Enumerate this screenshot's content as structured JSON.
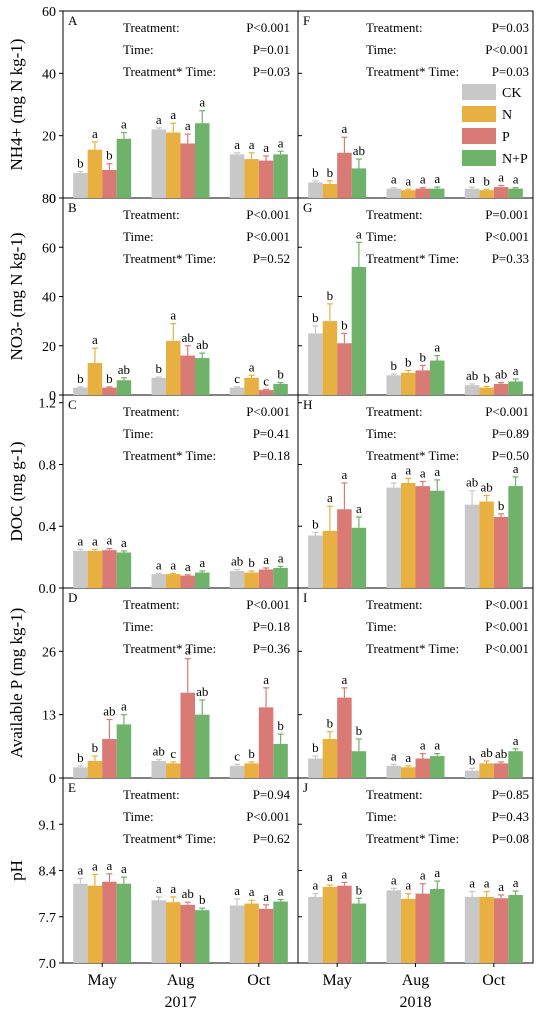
{
  "figure": {
    "years": [
      "2017",
      "2018"
    ],
    "legend": [
      {
        "label": "CK",
        "color": "#c8c8c8"
      },
      {
        "label": "N",
        "color": "#e8b040"
      },
      {
        "label": "P",
        "color": "#d97b74"
      },
      {
        "label": "N+P",
        "color": "#6fb26a"
      }
    ]
  },
  "chart_data": [
    {
      "type": "bar",
      "panel": "A",
      "row": 0,
      "col": 0,
      "ylabel": "NH4+ (mg N kg-1)",
      "ylim": [
        0,
        60
      ],
      "yticks": [
        0,
        20,
        40,
        60
      ],
      "categories": [
        "May",
        "Aug",
        "Oct"
      ],
      "series": [
        {
          "name": "CK",
          "values": [
            8,
            22,
            14
          ],
          "errors": [
            0.5,
            0.5,
            0.5
          ]
        },
        {
          "name": "N",
          "values": [
            15.5,
            21,
            12.5
          ],
          "errors": [
            2.5,
            3,
            2
          ]
        },
        {
          "name": "P",
          "values": [
            9,
            17.5,
            12
          ],
          "errors": [
            2,
            3,
            1.5
          ]
        },
        {
          "name": "N+P",
          "values": [
            19,
            24,
            14
          ],
          "errors": [
            2,
            4,
            1
          ]
        }
      ],
      "letters": [
        [
          "b",
          "a",
          "b",
          "a"
        ],
        [
          "a",
          "a",
          "a",
          "a"
        ],
        [
          "a",
          "a",
          "a",
          "a"
        ]
      ],
      "stats": [
        {
          "label": "Treatment:",
          "value": "P<0.001"
        },
        {
          "label": "Time:",
          "value": "P=0.01"
        },
        {
          "label": "Treatment* Time:",
          "value": "P=0.03"
        }
      ]
    },
    {
      "type": "bar",
      "panel": "F",
      "row": 0,
      "col": 1,
      "ylim": [
        0,
        60
      ],
      "categories": [
        "May",
        "Aug",
        "Oct"
      ],
      "series": [
        {
          "name": "CK",
          "values": [
            5,
            3,
            3
          ],
          "errors": [
            0.5,
            0.3,
            0.5
          ]
        },
        {
          "name": "N",
          "values": [
            4.5,
            2.5,
            2.5
          ],
          "errors": [
            1,
            0.3,
            0.3
          ]
        },
        {
          "name": "P",
          "values": [
            14.5,
            3,
            3.5
          ],
          "errors": [
            5,
            0.3,
            0.5
          ]
        },
        {
          "name": "N+P",
          "values": [
            9.5,
            3,
            3
          ],
          "errors": [
            3,
            0.5,
            0.3
          ]
        }
      ],
      "letters": [
        [
          "b",
          "b",
          "a",
          "ab"
        ],
        [
          "a",
          "a",
          "a",
          "a"
        ],
        [
          "a",
          "b",
          "a",
          "a"
        ]
      ],
      "stats": [
        {
          "label": "Treatment:",
          "value": "P=0.03"
        },
        {
          "label": "Time:",
          "value": "P<0.001"
        },
        {
          "label": "Treatment* Time:",
          "value": "P=0.03"
        }
      ]
    },
    {
      "type": "bar",
      "panel": "B",
      "row": 1,
      "col": 0,
      "ylabel": "NO3- (mg N kg-1)",
      "ylim": [
        0,
        80
      ],
      "yticks": [
        0,
        20,
        40,
        60,
        80
      ],
      "categories": [
        "May",
        "Aug",
        "Oct"
      ],
      "series": [
        {
          "name": "CK",
          "values": [
            3,
            7,
            3
          ],
          "errors": [
            0.3,
            0.3,
            0.3
          ]
        },
        {
          "name": "N",
          "values": [
            13,
            22,
            7
          ],
          "errors": [
            6,
            7,
            1
          ]
        },
        {
          "name": "P",
          "values": [
            3,
            16,
            2
          ],
          "errors": [
            0.3,
            4,
            0.3
          ]
        },
        {
          "name": "N+P",
          "values": [
            6,
            15,
            4.5
          ],
          "errors": [
            1,
            2,
            0.5
          ]
        }
      ],
      "letters": [
        [
          "b",
          "a",
          "b",
          "ab"
        ],
        [
          "b",
          "a",
          "ab",
          "ab"
        ],
        [
          "c",
          "a",
          "c",
          "b"
        ]
      ],
      "stats": [
        {
          "label": "Treatment:",
          "value": "P<0.001"
        },
        {
          "label": "Time:",
          "value": "P<0.001"
        },
        {
          "label": "Treatment* Time:",
          "value": "P=0.52"
        }
      ]
    },
    {
      "type": "bar",
      "panel": "G",
      "row": 1,
      "col": 1,
      "ylim": [
        0,
        80
      ],
      "categories": [
        "May",
        "Aug",
        "Oct"
      ],
      "series": [
        {
          "name": "CK",
          "values": [
            25,
            8,
            4
          ],
          "errors": [
            3,
            0.5,
            0.5
          ]
        },
        {
          "name": "N",
          "values": [
            30,
            9,
            3
          ],
          "errors": [
            7,
            1,
            0.5
          ]
        },
        {
          "name": "P",
          "values": [
            21,
            10,
            4.5
          ],
          "errors": [
            4,
            2,
            0.5
          ]
        },
        {
          "name": "N+P",
          "values": [
            52,
            14,
            5.5
          ],
          "errors": [
            10,
            2,
            1
          ]
        }
      ],
      "letters": [
        [
          "b",
          "b",
          "b",
          "a"
        ],
        [
          "b",
          "b",
          "b",
          "a"
        ],
        [
          "ab",
          "b",
          "ab",
          "a"
        ]
      ],
      "stats": [
        {
          "label": "Treatment:",
          "value": "P=0.001"
        },
        {
          "label": "Time:",
          "value": "P<0.001"
        },
        {
          "label": "Treatment* Time:",
          "value": "P=0.33"
        }
      ]
    },
    {
      "type": "bar",
      "panel": "C",
      "row": 2,
      "col": 0,
      "ylabel": "DOC (mg g-1)",
      "ylim": [
        0,
        1.25
      ],
      "yticks": [
        0.0,
        0.4,
        0.8,
        1.2
      ],
      "categories": [
        "May",
        "Aug",
        "Oct"
      ],
      "series": [
        {
          "name": "CK",
          "values": [
            0.24,
            0.09,
            0.11
          ],
          "errors": [
            0.01,
            0.005,
            0.01
          ]
        },
        {
          "name": "N",
          "values": [
            0.24,
            0.09,
            0.1
          ],
          "errors": [
            0.01,
            0.005,
            0.01
          ]
        },
        {
          "name": "P",
          "values": [
            0.245,
            0.08,
            0.12
          ],
          "errors": [
            0.01,
            0.005,
            0.01
          ]
        },
        {
          "name": "N+P",
          "values": [
            0.23,
            0.1,
            0.13
          ],
          "errors": [
            0.01,
            0.01,
            0.01
          ]
        }
      ],
      "letters": [
        [
          "a",
          "a",
          "a",
          "a"
        ],
        [
          "a",
          "a",
          "a",
          "a"
        ],
        [
          "ab",
          "b",
          "a",
          "a"
        ]
      ],
      "stats": [
        {
          "label": "Treatment:",
          "value": "P<0.001"
        },
        {
          "label": "Time:",
          "value": "P=0.41"
        },
        {
          "label": "Treatment* Time:",
          "value": "P=0.18"
        }
      ]
    },
    {
      "type": "bar",
      "panel": "H",
      "row": 2,
      "col": 1,
      "ylim": [
        0,
        1.25
      ],
      "categories": [
        "May",
        "Aug",
        "Oct"
      ],
      "series": [
        {
          "name": "CK",
          "values": [
            0.34,
            0.65,
            0.54
          ],
          "errors": [
            0.02,
            0.03,
            0.09
          ]
        },
        {
          "name": "N",
          "values": [
            0.37,
            0.68,
            0.56
          ],
          "errors": [
            0.16,
            0.03,
            0.04
          ]
        },
        {
          "name": "P",
          "values": [
            0.51,
            0.66,
            0.46
          ],
          "errors": [
            0.17,
            0.03,
            0.02
          ]
        },
        {
          "name": "N+P",
          "values": [
            0.39,
            0.63,
            0.66
          ],
          "errors": [
            0.07,
            0.07,
            0.06
          ]
        }
      ],
      "letters": [
        [
          "b",
          "a",
          "a",
          "a"
        ],
        [
          "a",
          "a",
          "a",
          "a"
        ],
        [
          "ab",
          "ab",
          "b",
          "a"
        ]
      ],
      "stats": [
        {
          "label": "Treatment:",
          "value": "P<0.001"
        },
        {
          "label": "Time:",
          "value": "P=0.89"
        },
        {
          "label": "Treatment* Time:",
          "value": "P=0.50"
        }
      ]
    },
    {
      "type": "bar",
      "panel": "D",
      "row": 3,
      "col": 0,
      "ylabel": "Available P (mg kg-1)",
      "ylim": [
        0,
        39
      ],
      "yticks": [
        0,
        13,
        26
      ],
      "categories": [
        "May",
        "Aug",
        "Oct"
      ],
      "series": [
        {
          "name": "CK",
          "values": [
            2.2,
            3.5,
            2.5
          ],
          "errors": [
            0.3,
            0.3,
            0.3
          ]
        },
        {
          "name": "N",
          "values": [
            3.5,
            3,
            3
          ],
          "errors": [
            1,
            0.3,
            0.3
          ]
        },
        {
          "name": "P",
          "values": [
            8,
            17.5,
            14.5
          ],
          "errors": [
            4,
            7,
            4
          ]
        },
        {
          "name": "N+P",
          "values": [
            11,
            13,
            7
          ],
          "errors": [
            2,
            3,
            2
          ]
        }
      ],
      "letters": [
        [
          "b",
          "b",
          "ab",
          "a"
        ],
        [
          "ab",
          "c",
          "a",
          "ab"
        ],
        [
          "c",
          "b",
          "a",
          "b"
        ]
      ],
      "stats": [
        {
          "label": "Treatment:",
          "value": "P<0.001"
        },
        {
          "label": "Time:",
          "value": "P=0.18"
        },
        {
          "label": "Treatment* Time:",
          "value": "P=0.36"
        }
      ]
    },
    {
      "type": "bar",
      "panel": "I",
      "row": 3,
      "col": 1,
      "ylim": [
        0,
        39
      ],
      "categories": [
        "May",
        "Aug",
        "Oct"
      ],
      "series": [
        {
          "name": "CK",
          "values": [
            4,
            2.5,
            1.5
          ],
          "errors": [
            0.5,
            0.3,
            0.5
          ]
        },
        {
          "name": "N",
          "values": [
            8,
            2.2,
            3
          ],
          "errors": [
            1.5,
            0.3,
            0.5
          ]
        },
        {
          "name": "P",
          "values": [
            16.5,
            4,
            3
          ],
          "errors": [
            2,
            1,
            0.3
          ]
        },
        {
          "name": "N+P",
          "values": [
            5.5,
            4.5,
            5.5
          ],
          "errors": [
            2.5,
            0.5,
            0.5
          ]
        }
      ],
      "letters": [
        [
          "b",
          "b",
          "a",
          "b"
        ],
        [
          "a",
          "a",
          "a",
          "a"
        ],
        [
          "b",
          "ab",
          "ab",
          "a"
        ]
      ],
      "stats": [
        {
          "label": "Treatment:",
          "value": "P<0.001"
        },
        {
          "label": "Time:",
          "value": "P<0.001"
        },
        {
          "label": "Treatment* Time:",
          "value": "P<0.001"
        }
      ]
    },
    {
      "type": "bar",
      "panel": "E",
      "row": 4,
      "col": 0,
      "ylabel": "pH",
      "ylim": [
        7.0,
        9.8
      ],
      "yticks": [
        7.0,
        7.7,
        8.4,
        9.1
      ],
      "categories": [
        "May",
        "Aug",
        "Oct"
      ],
      "series": [
        {
          "name": "CK",
          "values": [
            8.2,
            7.95,
            7.87
          ],
          "errors": [
            0.08,
            0.05,
            0.1
          ]
        },
        {
          "name": "N",
          "values": [
            8.17,
            7.92,
            7.9
          ],
          "errors": [
            0.17,
            0.08,
            0.05
          ]
        },
        {
          "name": "P",
          "values": [
            8.23,
            7.88,
            7.82
          ],
          "errors": [
            0.12,
            0.04,
            0.06
          ]
        },
        {
          "name": "N+P",
          "values": [
            8.2,
            7.8,
            7.93
          ],
          "errors": [
            0.1,
            0.03,
            0.03
          ]
        }
      ],
      "letters": [
        [
          "a",
          "a",
          "a",
          "a"
        ],
        [
          "a",
          "a",
          "ab",
          "b"
        ],
        [
          "a",
          "a",
          "a",
          "a"
        ]
      ],
      "stats": [
        {
          "label": "Treatment:",
          "value": "P=0.94"
        },
        {
          "label": "Time:",
          "value": "P<0.001"
        },
        {
          "label": "Treatment* Time:",
          "value": "P=0.62"
        }
      ]
    },
    {
      "type": "bar",
      "panel": "J",
      "row": 4,
      "col": 1,
      "ylim": [
        7.0,
        9.8
      ],
      "categories": [
        "May",
        "Aug",
        "Oct"
      ],
      "series": [
        {
          "name": "CK",
          "values": [
            8.0,
            8.1,
            8.0
          ],
          "errors": [
            0.05,
            0.03,
            0.08
          ]
        },
        {
          "name": "N",
          "values": [
            8.15,
            7.97,
            8.0
          ],
          "errors": [
            0.03,
            0.08,
            0.08
          ]
        },
        {
          "name": "P",
          "values": [
            8.17,
            8.05,
            7.98
          ],
          "errors": [
            0.05,
            0.15,
            0.05
          ]
        },
        {
          "name": "N+P",
          "values": [
            7.9,
            8.12,
            8.03
          ],
          "errors": [
            0.08,
            0.12,
            0.06
          ]
        }
      ],
      "letters": [
        [
          "a",
          "a",
          "a",
          "b"
        ],
        [
          "a",
          "a",
          "a",
          "a"
        ],
        [
          "a",
          "a",
          "a",
          "a"
        ]
      ],
      "stats": [
        {
          "label": "Treatment:",
          "value": "P=0.85"
        },
        {
          "label": "Time:",
          "value": "P=0.43"
        },
        {
          "label": "Treatment* Time:",
          "value": "P=0.08"
        }
      ]
    }
  ]
}
